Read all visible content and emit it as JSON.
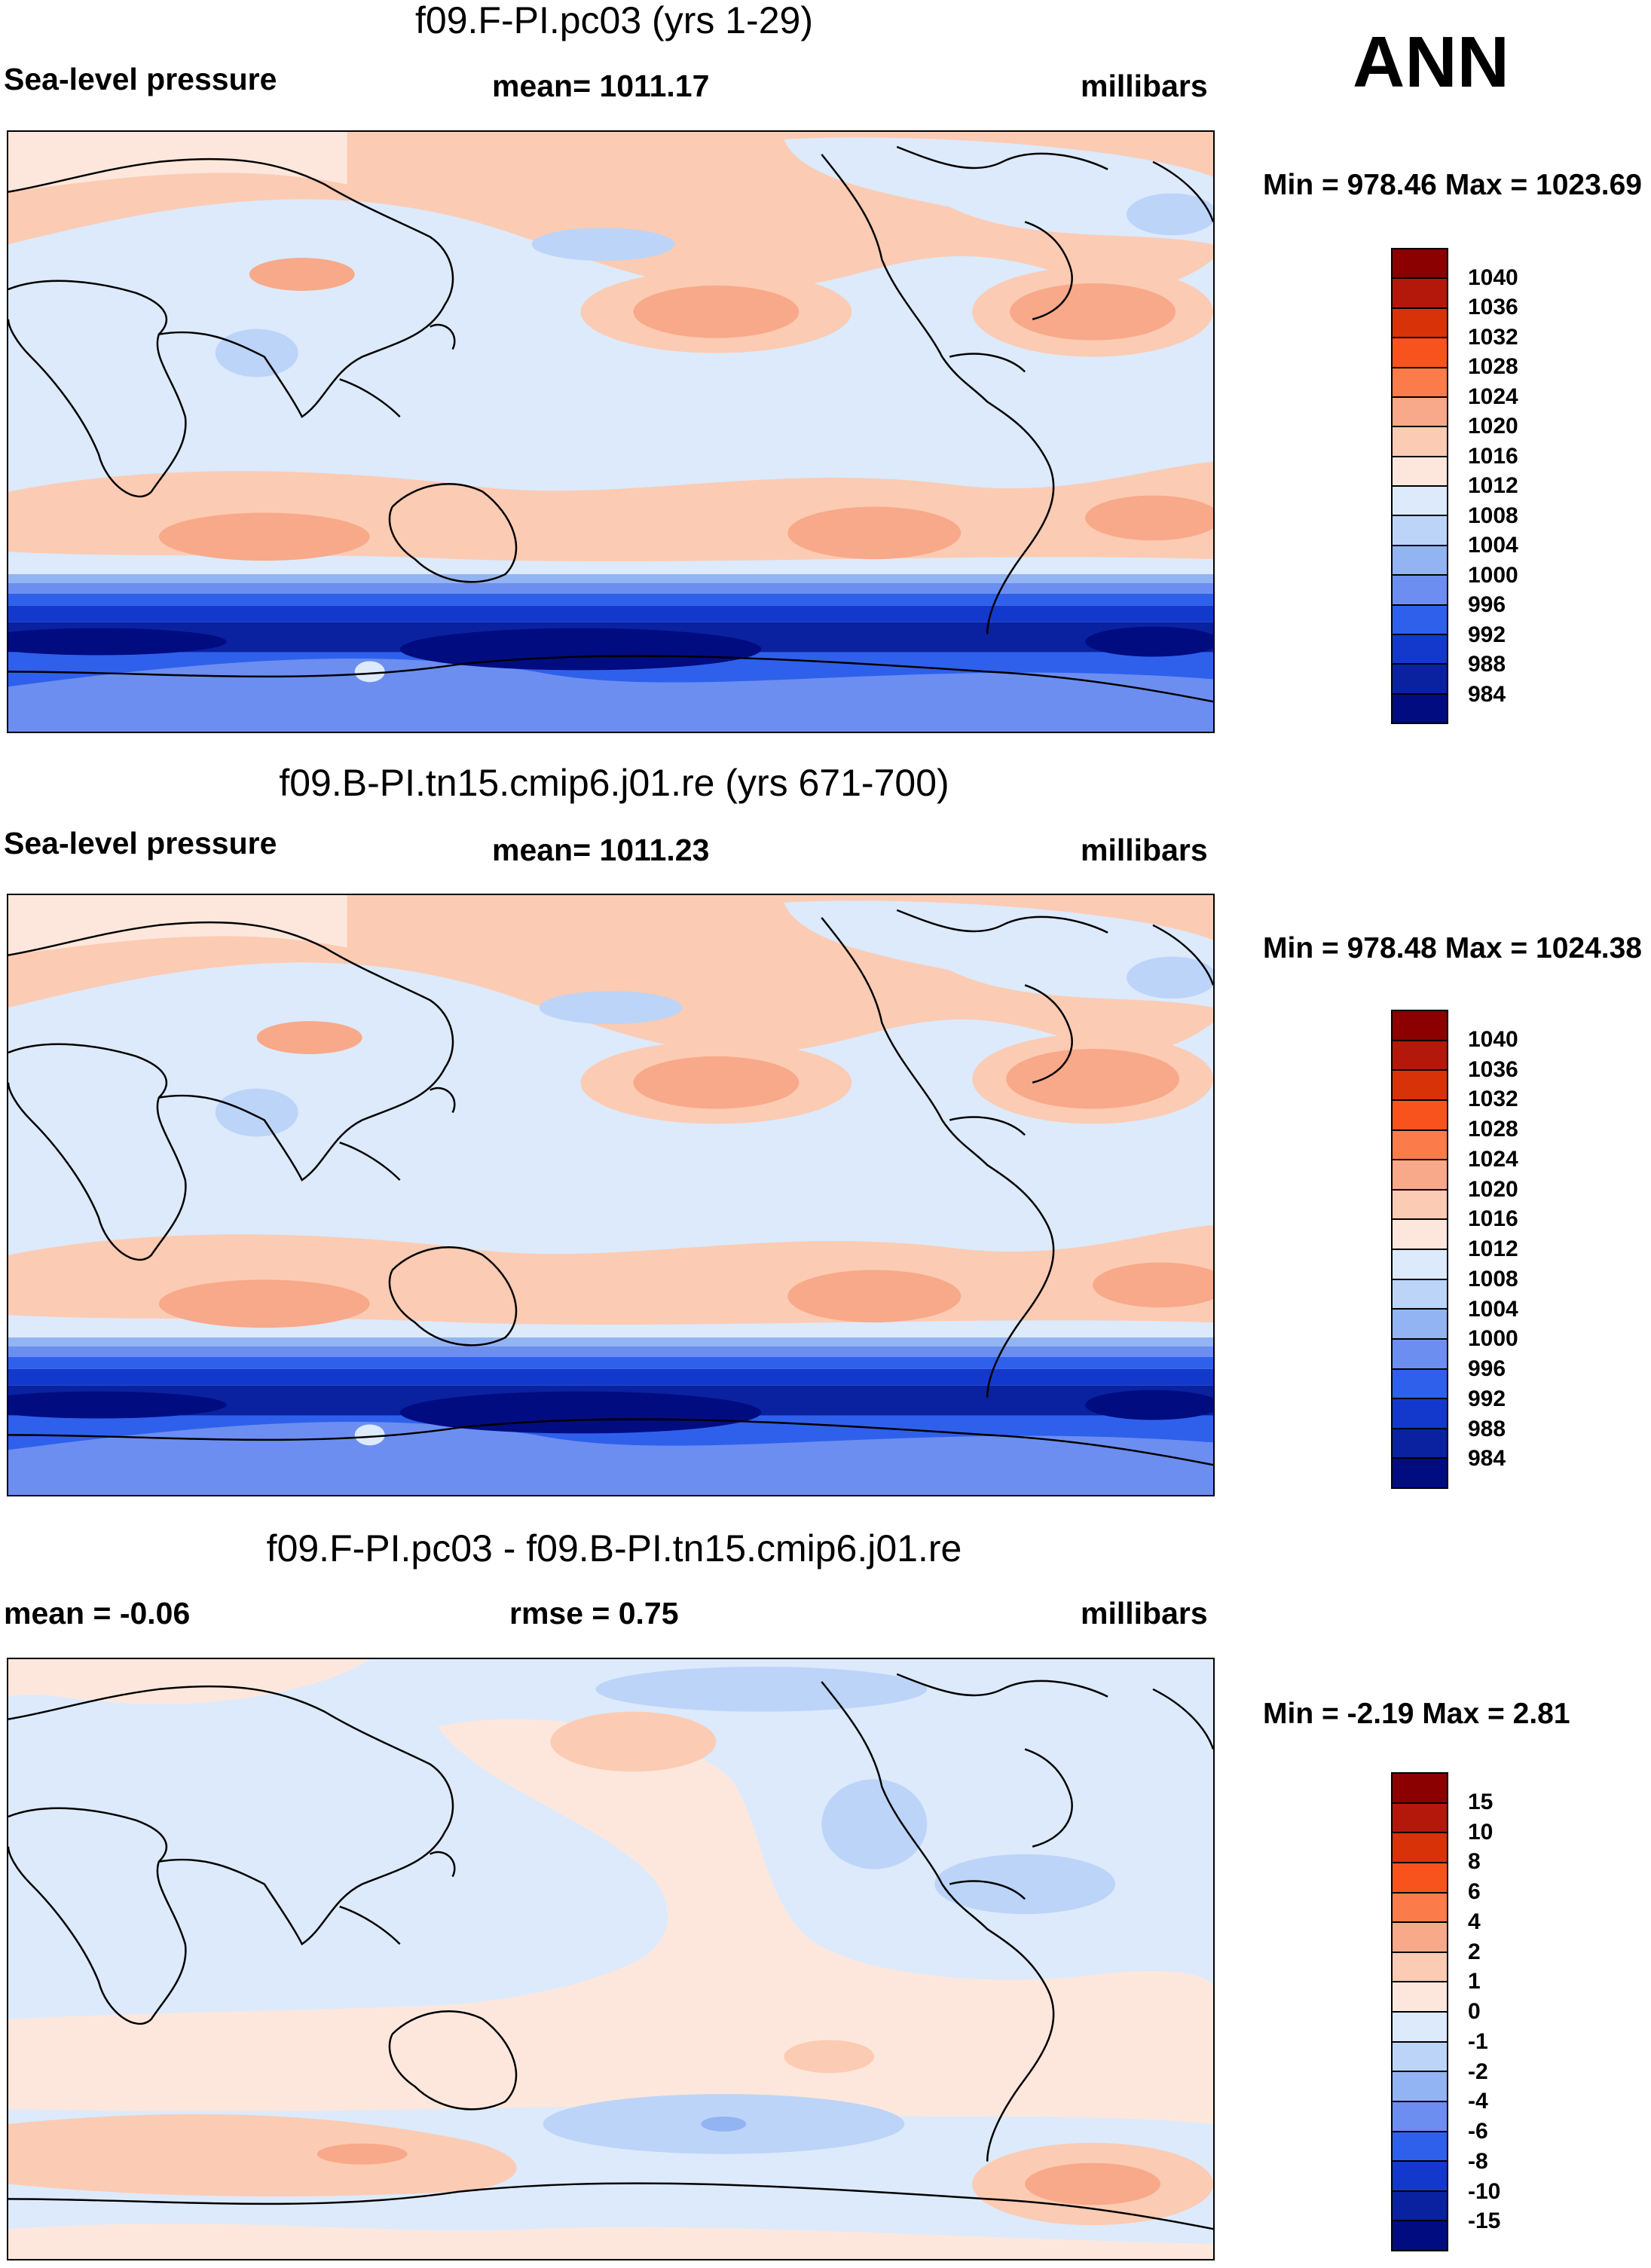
{
  "season": "ANN",
  "panels": [
    {
      "title": "f09.F-PI.pc03 (yrs 1-29)",
      "left_label": "Sea-level pressure",
      "center_label": "mean= 1011.17",
      "right_label": "millibars",
      "minmax": "Min = 978.46 Max = 1023.69",
      "field": "sea-level-pressure"
    },
    {
      "title": "f09.B-PI.tn15.cmip6.j01.re (yrs 671-700)",
      "left_label": "Sea-level pressure",
      "center_label": "mean= 1011.23",
      "right_label": "millibars",
      "minmax": "Min = 978.48 Max = 1024.38",
      "field": "sea-level-pressure"
    },
    {
      "title": "f09.F-PI.pc03 - f09.B-PI.tn15.cmip6.j01.re",
      "left_label": "mean =  -0.06",
      "center_label": "rmse =   0.75",
      "right_label": "millibars",
      "minmax": "Min =  -2.19 Max =   2.81",
      "field": "difference"
    }
  ],
  "colorbars": {
    "slp": {
      "labels": [
        "1040",
        "1036",
        "1032",
        "1028",
        "1024",
        "1020",
        "1016",
        "1012",
        "1008",
        "1004",
        "1000",
        "996",
        "992",
        "988",
        "984"
      ],
      "colors": [
        "#8b0000",
        "#b3180a",
        "#d83208",
        "#f9531d",
        "#fb7c4a",
        "#f8a989",
        "#fccbb3",
        "#fde7dc",
        "#dceafc",
        "#bcd4f8",
        "#93b4f2",
        "#6b8ef0",
        "#2f60ec",
        "#1339cc",
        "#0a22a0",
        "#000c80"
      ]
    },
    "diff": {
      "labels": [
        "15",
        "10",
        "8",
        "6",
        "4",
        "2",
        "1",
        "0",
        "-1",
        "-2",
        "-4",
        "-6",
        "-8",
        "-10",
        "-15"
      ],
      "colors": [
        "#8b0000",
        "#b3180a",
        "#d83208",
        "#f9531d",
        "#fb7c4a",
        "#f8a989",
        "#fccbb3",
        "#fde7dc",
        "#dceafc",
        "#bcd4f8",
        "#93b4f2",
        "#6b8ef0",
        "#2f60ec",
        "#1339cc",
        "#0a22a0",
        "#000c80"
      ]
    }
  }
}
